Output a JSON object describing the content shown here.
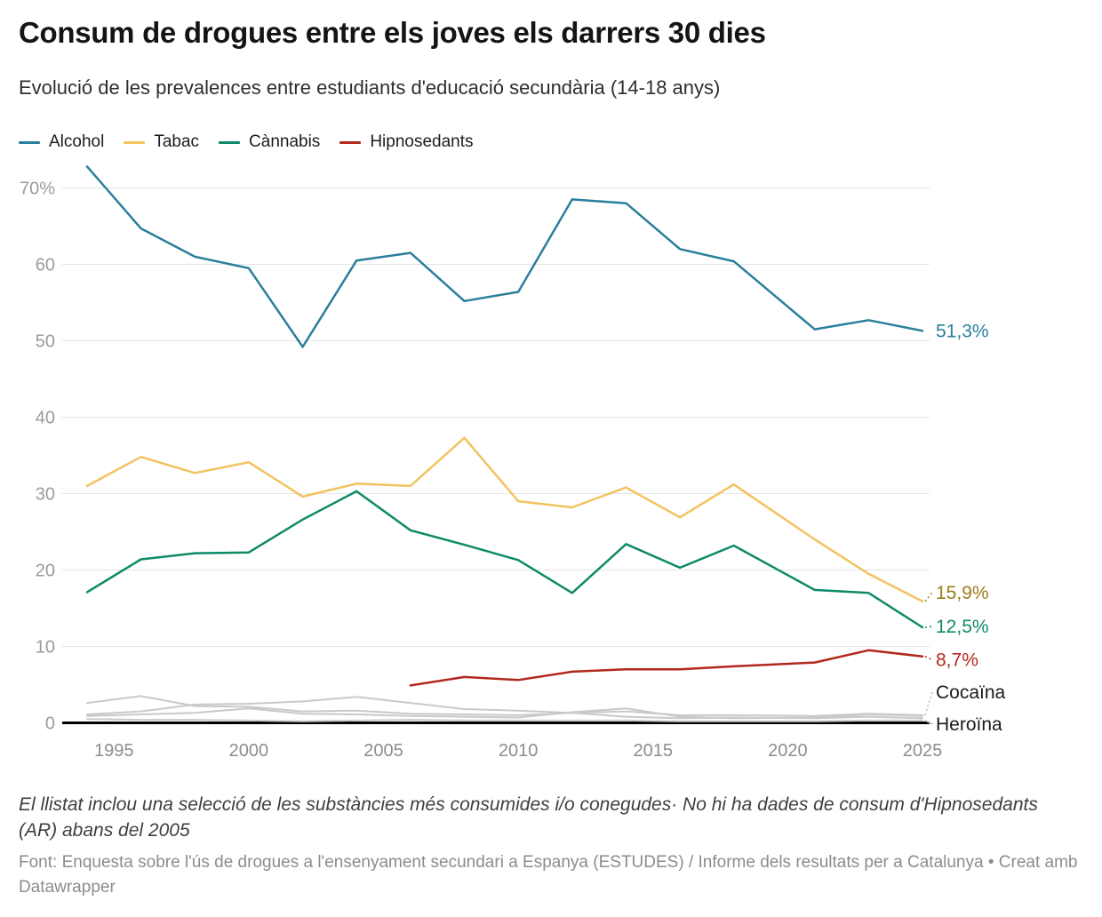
{
  "chart_data": {
    "type": "line",
    "title": "Consum de drogues entre els joves els darrers 30 dies",
    "subtitle": "Evolució de les prevalences entre estudiants d'educació secundària (14-18 anys)",
    "x": [
      1994,
      1996,
      1998,
      2000,
      2002,
      2004,
      2006,
      2008,
      2010,
      2012,
      2014,
      2016,
      2018,
      2021,
      2023,
      2025
    ],
    "x_ticks": [
      1995,
      2000,
      2005,
      2010,
      2015,
      2020,
      2025
    ],
    "y_ticks": [
      0,
      10,
      20,
      30,
      40,
      50,
      60,
      70
    ],
    "y_unit": "%",
    "y_top_tick_label": "70%",
    "ylim": [
      0,
      73
    ],
    "grid": true,
    "legend_position": "top",
    "series": [
      {
        "id": "cocaina",
        "name": "Cocaïna",
        "color": "#c9c9c9",
        "label_color": "#1a1a1a",
        "muted": true,
        "in_legend": false,
        "end_label": "Cocaïna",
        "values": [
          1.1,
          1.5,
          2.4,
          2.5,
          2.8,
          3.4,
          2.6,
          1.8,
          1.6,
          1.3,
          1.5,
          1.0,
          1.0,
          0.9,
          1.2,
          1.0
        ]
      },
      {
        "id": "altres-1",
        "name": "",
        "color": "#c9c9c9",
        "muted": true,
        "in_legend": false,
        "end_label": null,
        "values": [
          2.6,
          3.5,
          2.2,
          2.1,
          1.5,
          1.6,
          1.2,
          1.1,
          1.0,
          1.3,
          0.8,
          0.6,
          0.7,
          0.6,
          0.8,
          0.6
        ]
      },
      {
        "id": "altres-2",
        "name": "",
        "color": "#c9c9c9",
        "muted": true,
        "in_legend": false,
        "end_label": null,
        "values": [
          0.9,
          1.1,
          1.3,
          1.9,
          1.2,
          1.1,
          0.9,
          0.8,
          0.7,
          1.4,
          1.9,
          0.8,
          0.6,
          0.7,
          1.1,
          0.9
        ]
      },
      {
        "id": "heroina",
        "name": "Heroïna",
        "color": "#c9c9c9",
        "label_color": "#1a1a1a",
        "muted": true,
        "in_legend": false,
        "end_label": "Heroïna",
        "values": [
          0.5,
          0.4,
          0.4,
          0.3,
          0.2,
          0.3,
          0.4,
          0.3,
          0.3,
          0.3,
          0.3,
          0.2,
          0.2,
          0.2,
          0.3,
          0.3
        ]
      },
      {
        "id": "alcohol",
        "name": "Alcohol",
        "color": "#2a7f9c",
        "muted": false,
        "in_legend": true,
        "end_label": "51,3%",
        "values": [
          72.8,
          64.7,
          61.0,
          59.5,
          49.2,
          60.5,
          61.5,
          55.2,
          56.4,
          68.5,
          68.0,
          62.0,
          60.4,
          51.5,
          52.7,
          51.3
        ]
      },
      {
        "id": "tabac",
        "name": "Tabac",
        "color": "#f2c35f",
        "label_color": "#9c7c16",
        "muted": false,
        "in_legend": true,
        "end_label": "15,9%",
        "values": [
          31.0,
          34.8,
          32.7,
          34.1,
          29.6,
          31.3,
          31.0,
          37.3,
          29.0,
          28.2,
          30.8,
          26.9,
          31.2,
          24.0,
          19.5,
          15.9
        ]
      },
      {
        "id": "cannabis",
        "name": "Cànnabis",
        "color": "#0e8a68",
        "muted": false,
        "in_legend": true,
        "end_label": "12,5%",
        "values": [
          17.1,
          21.4,
          22.2,
          22.3,
          26.6,
          30.3,
          25.2,
          23.3,
          21.3,
          17.0,
          23.4,
          20.3,
          23.2,
          17.4,
          17.0,
          12.5
        ]
      },
      {
        "id": "hipnosedants",
        "name": "Hipnosedants",
        "color": "#b2281e",
        "muted": false,
        "in_legend": true,
        "end_label": "8,7%",
        "values": [
          null,
          null,
          null,
          null,
          null,
          null,
          4.9,
          6.0,
          5.6,
          6.7,
          7.0,
          7.0,
          7.4,
          7.9,
          9.5,
          8.7
        ]
      }
    ]
  },
  "colors": {
    "grid": "#e4e4e4",
    "axis": "#000000",
    "tick_label": "#9b9b9b"
  },
  "footer": {
    "note": "El llistat inclou una selecció de les substàncies més consumides i/o conegudes· No hi ha dades de consum d'Hipnosedants (AR) abans del 2005",
    "source": "Font: Enquesta sobre l'ús de drogues a l'ensenyament secundari a Espanya (ESTUDES) / Informe dels resultats per a Catalunya",
    "separator": " • ",
    "attribution": "Creat amb Datawrapper"
  }
}
